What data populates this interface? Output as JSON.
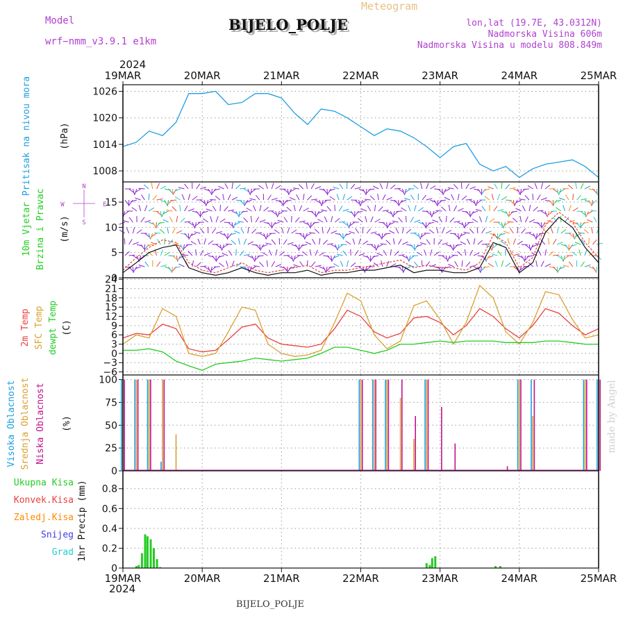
{
  "header": {
    "model_label": "Model",
    "model_name": "wrf−nmm_v3.9.1 e1km",
    "title": "BIJELO_POLJE",
    "subtitle": "Meteogram",
    "lonlat": "lon,lat (19.7E, 43.0312N)",
    "elevation": "Nadmorska Visina 606m",
    "model_elevation": "Nadmorska Visina u modelu 808.849m"
  },
  "footer": {
    "station": "BIJELO_POLJE",
    "credit": "made by Angel"
  },
  "time_axis": {
    "year": "2024",
    "labels": [
      "19MAR",
      "20MAR",
      "21MAR",
      "22MAR",
      "23MAR",
      "24MAR",
      "25MAR"
    ]
  },
  "colors": {
    "pressure": "#1f9fe0",
    "temp2m": "#e8413c",
    "sfc_temp": "#d9a030",
    "dewpoint": "#22cc22",
    "cloud_high": "#1aa0e0",
    "cloud_mid": "#d9a030",
    "cloud_low": "#c0108c",
    "precip_total": "#22cc22",
    "precip_conv": "#e8413c",
    "wind_purple": "#8a1fd0",
    "legend_purple": "#b040d0"
  },
  "chart_data": [
    {
      "type": "line",
      "name": "pressure",
      "ylabel": "Pritisak na nivou mora",
      "unit": "(hPa)",
      "ylim": [
        1005.5,
        1027.5
      ],
      "yticks": [
        "1026",
        "1020",
        "1014",
        "1008"
      ],
      "ytick_values": [
        1026,
        1020,
        1014,
        1008
      ],
      "grid": true,
      "x": [
        0,
        0.17,
        0.33,
        0.5,
        0.67,
        0.83,
        1,
        1.17,
        1.33,
        1.5,
        1.67,
        1.83,
        2,
        2.17,
        2.33,
        2.5,
        2.67,
        2.83,
        3,
        3.17,
        3.33,
        3.5,
        3.67,
        3.83,
        4,
        4.17,
        4.33,
        4.5,
        4.67,
        4.83,
        5,
        5.17,
        5.33,
        5.5,
        5.67,
        5.83,
        6
      ],
      "values": [
        1013.5,
        1014.5,
        1017,
        1016,
        1019,
        1025.5,
        1025.5,
        1026,
        1023,
        1023.5,
        1025.5,
        1025.5,
        1024.5,
        1021,
        1018.5,
        1022,
        1021.5,
        1020,
        1018,
        1016,
        1017.5,
        1017,
        1015.5,
        1013.5,
        1011,
        1013.5,
        1014.2,
        1009.5,
        1008,
        1009,
        1006.5,
        1008.5,
        1009.5,
        1010,
        1010.5,
        1009,
        1006.5
      ]
    },
    {
      "type": "line",
      "name": "wind",
      "ylabel": "10m Vjetar",
      "ylabel2": "Brzina i Pravac",
      "unit": "(m/s)",
      "ylim": [
        0,
        19
      ],
      "yticks": [
        "15",
        "10",
        "5",
        "0"
      ],
      "ytick_values": [
        15,
        10,
        5,
        0
      ],
      "compass": [
        "N",
        "E",
        "S",
        "W"
      ],
      "grid": true,
      "x": [
        0,
        0.17,
        0.33,
        0.5,
        0.67,
        0.83,
        1,
        1.17,
        1.33,
        1.5,
        1.67,
        1.83,
        2,
        2.17,
        2.33,
        2.5,
        2.67,
        2.83,
        3,
        3.17,
        3.33,
        3.5,
        3.67,
        3.83,
        4,
        4.17,
        4.33,
        4.5,
        4.67,
        4.83,
        5,
        5.17,
        5.33,
        5.5,
        5.67,
        5.83,
        6
      ],
      "speed_10m": [
        1,
        3,
        5,
        6,
        6.5,
        2,
        1,
        0.5,
        1,
        2,
        1,
        0.5,
        1,
        1,
        1.5,
        0.5,
        1,
        1,
        1.5,
        1.5,
        2,
        2.5,
        1,
        1.5,
        1.5,
        1,
        1,
        2,
        7,
        6,
        1,
        3,
        9,
        12,
        10,
        6,
        3
      ],
      "gust": [
        1.5,
        4,
        6,
        7.5,
        7,
        3,
        1.5,
        1,
        2,
        3,
        1.5,
        1,
        1.5,
        2,
        2.5,
        1,
        1.5,
        1.5,
        2,
        2.5,
        3,
        3.5,
        2,
        2.5,
        2,
        2,
        1.5,
        3,
        8.5,
        7,
        2,
        4,
        10.5,
        13,
        11,
        7,
        4
      ],
      "barb_colors": [
        "#8a1fd0",
        "#22cc22",
        "#1aa0e0",
        "#ff8800",
        "#d02020",
        "#22cccc",
        "#8a1fd0"
      ]
    },
    {
      "type": "line",
      "name": "temperature",
      "ylabels": [
        "2m Temp",
        "SFC Temp",
        "dewpt Temp"
      ],
      "unit": "(C)",
      "ylim": [
        -7,
        24.5
      ],
      "yticks": [
        "24",
        "21",
        "18",
        "15",
        "12",
        "9",
        "6",
        "3",
        "0",
        "−3",
        "−6"
      ],
      "ytick_values": [
        24,
        21,
        18,
        15,
        12,
        9,
        6,
        3,
        0,
        -3,
        -6
      ],
      "grid": true,
      "x": [
        0,
        0.17,
        0.33,
        0.5,
        0.67,
        0.83,
        1,
        1.17,
        1.33,
        1.5,
        1.67,
        1.83,
        2,
        2.17,
        2.33,
        2.5,
        2.67,
        2.83,
        3,
        3.17,
        3.33,
        3.5,
        3.67,
        3.83,
        4,
        4.17,
        4.33,
        4.5,
        4.67,
        4.83,
        5,
        5.17,
        5.33,
        5.5,
        5.67,
        5.83,
        6
      ],
      "series": [
        {
          "name": "2m Temp",
          "values": [
            5,
            6.5,
            6,
            9.5,
            8,
            1.5,
            0.5,
            1,
            4.5,
            8.5,
            9.5,
            5,
            3,
            2.5,
            2,
            3,
            8,
            14,
            12,
            7,
            5,
            6.5,
            11.5,
            12,
            10,
            6,
            9,
            14.5,
            12,
            8,
            5,
            9,
            14.5,
            13,
            9,
            6,
            8
          ]
        },
        {
          "name": "SFC Temp",
          "values": [
            3,
            6,
            5,
            14.5,
            12,
            0,
            -1,
            0,
            7,
            15,
            14,
            3,
            0,
            -1,
            -0.5,
            1,
            10,
            19.5,
            17,
            6,
            1.5,
            4,
            15.5,
            17,
            11,
            3,
            10,
            22,
            18,
            7,
            3,
            10,
            20,
            19,
            11,
            5,
            6
          ]
        },
        {
          "name": "dewpt Temp",
          "values": [
            1,
            1,
            1.5,
            0.5,
            -2.5,
            -4,
            -5.5,
            -3.5,
            -3,
            -2.5,
            -1.5,
            -2,
            -2.5,
            -2,
            -1.5,
            0,
            2,
            2,
            1,
            0,
            1,
            3,
            3,
            3.5,
            4,
            3.5,
            4,
            4,
            4,
            3.5,
            3.5,
            3.5,
            4,
            4,
            3.5,
            3,
            3
          ]
        }
      ]
    },
    {
      "type": "bar",
      "name": "cloud_cover",
      "ylabels": [
        "Visoka Oblacnost",
        "Srednja Oblacnost",
        "Niska Oblacnost"
      ],
      "unit": "(%)",
      "ylim": [
        0,
        105
      ],
      "yticks": [
        "100",
        "75",
        "50",
        "25",
        "0"
      ],
      "ytick_values": [
        100,
        75,
        50,
        25,
        0
      ],
      "grid": true,
      "x": [
        0,
        0.17,
        0.33,
        0.5,
        0.67,
        0.83,
        1,
        1.17,
        1.33,
        1.5,
        1.67,
        1.83,
        2,
        2.17,
        2.33,
        2.5,
        2.67,
        2.83,
        3,
        3.17,
        3.33,
        3.5,
        3.67,
        3.83,
        4,
        4.17,
        4.33,
        4.5,
        4.67,
        4.83,
        5,
        5.17,
        5.33,
        5.5,
        5.67,
        5.83,
        6
      ],
      "series": [
        {
          "name": "Visoka Oblacnost",
          "values": [
            100,
            100,
            100,
            10,
            0,
            0,
            0,
            0,
            0,
            0,
            0,
            0,
            0,
            0,
            0,
            0,
            0,
            0,
            100,
            100,
            100,
            0,
            0,
            100,
            0,
            0,
            0,
            0,
            0,
            0,
            100,
            100,
            0,
            0,
            0,
            100,
            100
          ]
        },
        {
          "name": "Srednja Oblacnost",
          "values": [
            100,
            100,
            100,
            100,
            40,
            0,
            0,
            0,
            0,
            0,
            0,
            0,
            0,
            0,
            0,
            0,
            0,
            0,
            100,
            100,
            100,
            80,
            35,
            100,
            0,
            0,
            0,
            0,
            0,
            0,
            100,
            60,
            0,
            0,
            0,
            100,
            100
          ]
        },
        {
          "name": "Niska Oblacnost",
          "values": [
            100,
            100,
            100,
            100,
            0,
            0,
            0,
            0,
            0,
            0,
            0,
            0,
            0,
            0,
            0,
            0,
            0,
            0,
            100,
            100,
            100,
            100,
            60,
            100,
            70,
            30,
            0,
            0,
            0,
            5,
            100,
            100,
            0,
            0,
            0,
            100,
            100
          ]
        }
      ]
    },
    {
      "type": "bar",
      "name": "precipitation",
      "ylabel": "1hr Precip (mm)",
      "legend": [
        "Ukupna Kisa",
        "Konvek.Kisa",
        "Zaledj.Kisa",
        "Snijeg",
        "Grad"
      ],
      "legend_colors": [
        "#22cc22",
        "#e8413c",
        "#ff8800",
        "#4040e0",
        "#22cccc"
      ],
      "ylim": [
        0,
        0.98
      ],
      "yticks": [
        "0.8",
        "0.6",
        "0.4",
        "0.2",
        "0"
      ],
      "ytick_values": [
        0.8,
        0.6,
        0.4,
        0.2,
        0
      ],
      "grid": true,
      "x": [
        0.17,
        0.2,
        0.24,
        0.28,
        0.31,
        0.35,
        0.39,
        0.43,
        0.47,
        3.83,
        3.87,
        3.9,
        3.94,
        4.7,
        4.76
      ],
      "values": [
        0.02,
        0.03,
        0.15,
        0.34,
        0.32,
        0.29,
        0.2,
        0.09,
        0.01,
        0.05,
        0.03,
        0.1,
        0.12,
        0.02,
        0.02
      ]
    }
  ]
}
